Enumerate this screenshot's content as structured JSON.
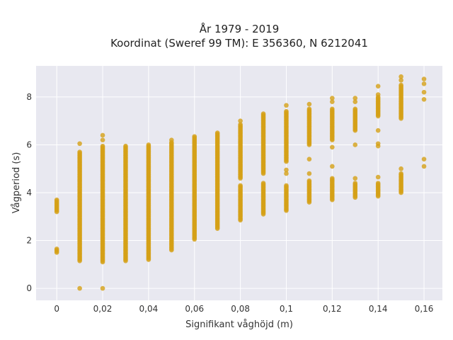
{
  "chart_data": {
    "type": "scatter",
    "title_line1": "År 1979 - 2019",
    "title_line2": "Koordinat (Sweref 99 TM): E 356360, N 6212041",
    "xlabel": "Signifikant våghöjd (m)",
    "ylabel": "Vågperiod (s)",
    "xlim": [
      -0.009,
      0.168
    ],
    "ylim": [
      -0.5,
      9.3
    ],
    "xticks": [
      0,
      0.02,
      0.04,
      0.06,
      0.08,
      0.1,
      0.12,
      0.14,
      0.16
    ],
    "xtick_labels": [
      "0",
      "0,02",
      "0,04",
      "0,06",
      "0,08",
      "0,1",
      "0,12",
      "0,14",
      "0,16"
    ],
    "yticks": [
      0,
      2,
      4,
      6,
      8
    ],
    "ytick_labels": [
      "0",
      "2",
      "4",
      "6",
      "8"
    ],
    "grid": true,
    "marker_color": "#d4a017",
    "plot_background": "#e8e8f0",
    "columns": [
      {
        "x": 0.0,
        "ranges": [
          [
            1.5,
            1.65
          ],
          [
            3.2,
            3.7
          ]
        ]
      },
      {
        "x": 0.01,
        "ranges": [
          [
            1.15,
            5.7
          ]
        ],
        "points": [
          0,
          6.05
        ]
      },
      {
        "x": 0.02,
        "ranges": [
          [
            1.1,
            5.95
          ]
        ],
        "points": [
          0,
          6.2,
          6.4
        ]
      },
      {
        "x": 0.03,
        "ranges": [
          [
            1.15,
            5.95
          ]
        ]
      },
      {
        "x": 0.04,
        "ranges": [
          [
            1.2,
            6.0
          ]
        ]
      },
      {
        "x": 0.05,
        "ranges": [
          [
            1.6,
            6.1
          ]
        ],
        "points": [
          6.2
        ]
      },
      {
        "x": 0.06,
        "ranges": [
          [
            2.05,
            6.35
          ]
        ]
      },
      {
        "x": 0.07,
        "ranges": [
          [
            2.5,
            6.5
          ]
        ]
      },
      {
        "x": 0.08,
        "ranges": [
          [
            2.85,
            4.3
          ],
          [
            4.6,
            6.85
          ]
        ],
        "points": [
          7.0
        ]
      },
      {
        "x": 0.09,
        "ranges": [
          [
            3.1,
            4.4
          ],
          [
            4.8,
            7.3
          ]
        ]
      },
      {
        "x": 0.1,
        "ranges": [
          [
            3.25,
            4.3
          ],
          [
            5.3,
            7.4
          ]
        ],
        "points": [
          4.8,
          4.95,
          7.65
        ]
      },
      {
        "x": 0.11,
        "ranges": [
          [
            3.6,
            4.5
          ],
          [
            6.0,
            7.5
          ]
        ],
        "points": [
          4.8,
          5.4,
          7.7
        ]
      },
      {
        "x": 0.12,
        "ranges": [
          [
            3.7,
            4.6
          ],
          [
            6.2,
            7.5
          ]
        ],
        "points": [
          5.1,
          5.9,
          7.8,
          7.95
        ]
      },
      {
        "x": 0.13,
        "ranges": [
          [
            3.8,
            4.4
          ],
          [
            6.6,
            7.5
          ]
        ],
        "points": [
          4.6,
          6.0,
          7.8,
          7.95
        ]
      },
      {
        "x": 0.14,
        "ranges": [
          [
            3.85,
            4.4
          ],
          [
            7.2,
            8.0
          ]
        ],
        "points": [
          4.65,
          5.95,
          6.05,
          6.6,
          8.1,
          8.45
        ]
      },
      {
        "x": 0.15,
        "ranges": [
          [
            4.0,
            4.8
          ],
          [
            7.1,
            8.5
          ]
        ],
        "points": [
          5.0,
          8.7,
          8.85
        ]
      },
      {
        "x": 0.16,
        "ranges": [],
        "points": [
          5.1,
          5.4,
          7.9,
          8.2,
          8.55,
          8.75
        ]
      }
    ]
  }
}
